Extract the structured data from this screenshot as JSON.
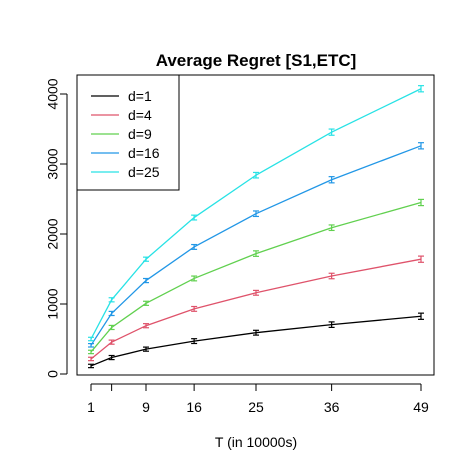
{
  "chart_data": {
    "type": "line",
    "title": "Average Regret [S1,ETC]",
    "xlabel": "T (in 10000s)",
    "ylabel": "",
    "x": [
      1,
      4,
      9,
      16,
      25,
      36,
      49
    ],
    "x_ticks": [
      1,
      9,
      16,
      25,
      36,
      49
    ],
    "x_tick_marks": [
      1,
      4,
      9,
      16,
      25,
      36,
      49
    ],
    "x_tick_labels": [
      "1",
      "9",
      "16",
      "25",
      "36",
      "49"
    ],
    "y_ticks": [
      0,
      1000,
      2000,
      3000,
      4000
    ],
    "y_tick_labels": [
      "0",
      "1000",
      "2000",
      "3000",
      "4000"
    ],
    "xlim": [
      1,
      49
    ],
    "ylim": [
      0,
      4000
    ],
    "grid": false,
    "legend_position": "top-left",
    "error_bars": true,
    "series": [
      {
        "name": "d=1",
        "color": "#000000",
        "values": [
          115,
          235,
          355,
          470,
          590,
          705,
          825
        ],
        "errors": [
          10,
          15,
          15,
          20,
          20,
          25,
          30
        ]
      },
      {
        "name": "d=4",
        "color": "#DF536B",
        "values": [
          215,
          455,
          690,
          930,
          1160,
          1400,
          1640
        ],
        "errors": [
          10,
          15,
          15,
          20,
          20,
          25,
          30
        ]
      },
      {
        "name": "d=9",
        "color": "#61D04F",
        "values": [
          315,
          665,
          1010,
          1365,
          1720,
          2090,
          2450
        ],
        "errors": [
          10,
          15,
          15,
          20,
          25,
          25,
          30
        ]
      },
      {
        "name": "d=16",
        "color": "#2297E6",
        "values": [
          410,
          865,
          1335,
          1815,
          2290,
          2775,
          3260
        ],
        "errors": [
          10,
          15,
          15,
          20,
          25,
          30,
          30
        ]
      },
      {
        "name": "d=25",
        "color": "#28E2E5",
        "values": [
          500,
          1060,
          1640,
          2235,
          2840,
          3455,
          4075
        ],
        "errors": [
          10,
          15,
          15,
          20,
          25,
          30,
          30
        ]
      }
    ]
  }
}
